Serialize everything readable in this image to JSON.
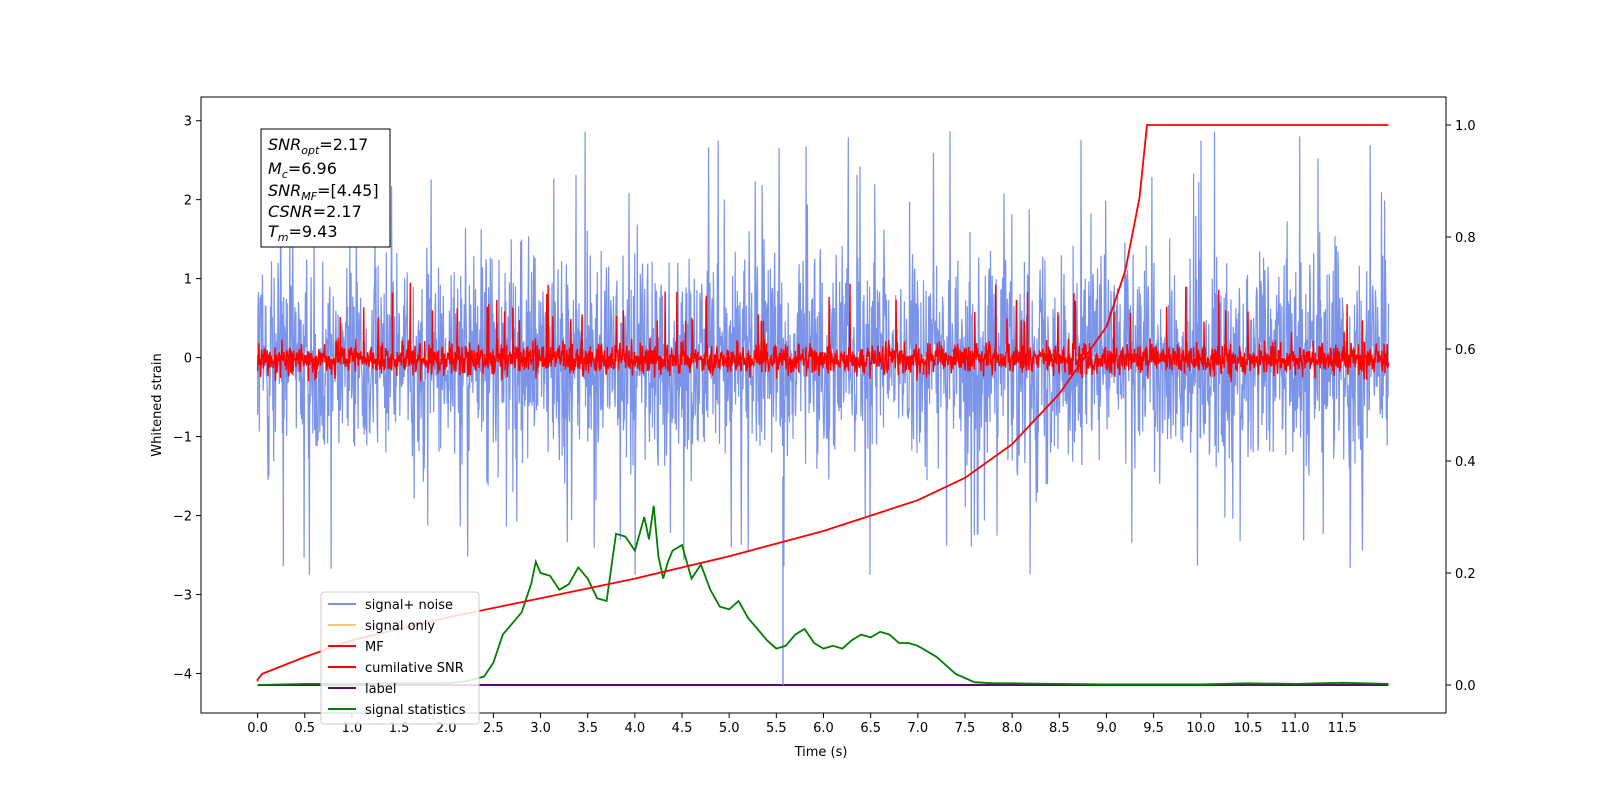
{
  "chart_data": {
    "type": "line",
    "xlabel": "Time (s)",
    "ylabel": "Whitened strain",
    "xlim": [
      -0.6,
      12.6
    ],
    "ylim": [
      -4.5,
      3.3
    ],
    "y2lim": [
      -0.05,
      1.05
    ],
    "x_ticks": [
      "0.0",
      "0.5",
      "1.0",
      "1.5",
      "2.0",
      "2.5",
      "3.0",
      "3.5",
      "4.0",
      "4.5",
      "5.0",
      "5.5",
      "6.0",
      "6.5",
      "7.0",
      "7.5",
      "8.0",
      "8.5",
      "9.0",
      "9.5",
      "10.0",
      "10.5",
      "11.0",
      "11.5"
    ],
    "y_ticks": [
      "3",
      "2",
      "1",
      "0",
      "−1",
      "−2",
      "−3",
      "−4"
    ],
    "y2_ticks": [
      "1.0",
      "0.8",
      "0.6",
      "0.4",
      "0.2",
      "0.0"
    ],
    "grid": false,
    "legend_position": "lower-left",
    "annotation": {
      "snr_opt": {
        "sym": "SNR",
        "sub": "opt",
        "value": "=2.17"
      },
      "mc": {
        "sym": "M",
        "sub": "c",
        "value": "=6.96"
      },
      "snr_mf": {
        "sym": "SNR",
        "sub": "MF",
        "value": "=[4.45]"
      },
      "csnr": {
        "sym": "CSNR",
        "value": "=2.17"
      },
      "tm": {
        "sym": "T",
        "sub": "m",
        "value": "=9.43"
      }
    },
    "series": [
      {
        "name": "signal+ noise",
        "color": "#7b93e8",
        "axis": "left",
        "kind": "noise",
        "y_range": [
          -2.75,
          2.95
        ]
      },
      {
        "name": "signal only",
        "color": "#f5c97a",
        "axis": "left",
        "kind": "flat",
        "y": 0
      },
      {
        "name": "MF",
        "color": "#ff0000",
        "axis": "left",
        "kind": "noise",
        "y_range": [
          -0.4,
          1.0
        ]
      },
      {
        "name": "cumilative SNR",
        "color": "#ff0000",
        "axis": "right",
        "x": [
          0.0,
          0.05,
          0.5,
          1.0,
          2.0,
          3.0,
          4.0,
          5.0,
          6.0,
          7.0,
          7.5,
          8.0,
          8.5,
          9.0,
          9.2,
          9.35,
          9.43,
          9.5,
          10.0,
          11.0,
          11.99
        ],
        "y": [
          0.01,
          0.02,
          0.05,
          0.08,
          0.12,
          0.155,
          0.19,
          0.23,
          0.275,
          0.33,
          0.37,
          0.43,
          0.52,
          0.64,
          0.74,
          0.87,
          1.0,
          1.0,
          1.0,
          1.0,
          1.0
        ]
      },
      {
        "name": "label",
        "color": "#5c0a6e",
        "axis": "right",
        "kind": "flat",
        "y": 0.0,
        "spike_x": 5.57
      },
      {
        "name": "signal statistics",
        "color": "#008000",
        "axis": "right",
        "x": [
          0.0,
          0.5,
          1.0,
          1.5,
          2.0,
          2.2,
          2.4,
          2.5,
          2.6,
          2.7,
          2.8,
          2.9,
          2.95,
          3.0,
          3.1,
          3.2,
          3.3,
          3.4,
          3.5,
          3.6,
          3.7,
          3.8,
          3.9,
          4.0,
          4.1,
          4.15,
          4.2,
          4.25,
          4.3,
          4.35,
          4.4,
          4.5,
          4.6,
          4.7,
          4.8,
          4.9,
          5.0,
          5.1,
          5.2,
          5.3,
          5.4,
          5.5,
          5.6,
          5.7,
          5.8,
          5.9,
          6.0,
          6.1,
          6.2,
          6.3,
          6.4,
          6.5,
          6.6,
          6.7,
          6.8,
          6.9,
          7.0,
          7.2,
          7.4,
          7.6,
          7.8,
          8.0,
          8.5,
          9.0,
          10.0,
          10.5,
          11.0,
          11.5,
          11.99
        ],
        "y": [
          0.0,
          0.002,
          0.002,
          0.003,
          0.003,
          0.006,
          0.015,
          0.04,
          0.09,
          0.11,
          0.13,
          0.18,
          0.22,
          0.2,
          0.195,
          0.17,
          0.18,
          0.21,
          0.19,
          0.155,
          0.15,
          0.27,
          0.265,
          0.24,
          0.3,
          0.26,
          0.32,
          0.23,
          0.19,
          0.22,
          0.24,
          0.25,
          0.19,
          0.215,
          0.17,
          0.14,
          0.135,
          0.15,
          0.12,
          0.1,
          0.08,
          0.065,
          0.07,
          0.09,
          0.1,
          0.075,
          0.065,
          0.07,
          0.065,
          0.08,
          0.09,
          0.085,
          0.095,
          0.09,
          0.075,
          0.075,
          0.07,
          0.05,
          0.02,
          0.005,
          0.003,
          0.003,
          0.002,
          0.001,
          0.001,
          0.003,
          0.002,
          0.004,
          0.002
        ]
      }
    ]
  }
}
